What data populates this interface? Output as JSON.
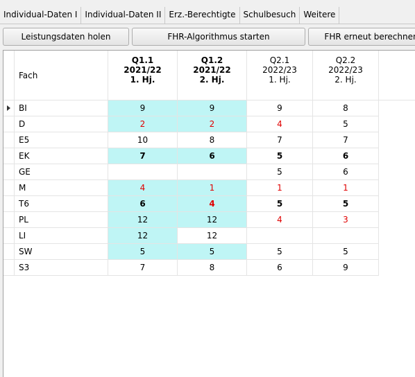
{
  "tabs": [
    "Individual-Daten I",
    "Individual-Daten II",
    "Erz.-Berechtigte",
    "Schulbesuch",
    "Weitere"
  ],
  "buttons": [
    "Leistungsdaten holen",
    "FHR-Algorithmus starten",
    "FHR erneut berechnen"
  ],
  "table": {
    "columns": [
      {
        "lines": [
          "Fach"
        ]
      },
      {
        "lines": [
          "Q1.1",
          "2021/22",
          "1. Hj."
        ],
        "bold": true
      },
      {
        "lines": [
          "Q1.2",
          "2021/22",
          "2. Hj."
        ],
        "bold": true
      },
      {
        "lines": [
          "Q2.1",
          "2022/23",
          "1. Hj."
        ]
      },
      {
        "lines": [
          "Q2.2",
          "2022/23",
          "2. Hj."
        ]
      }
    ],
    "rows": [
      {
        "fach": "BI",
        "current": true,
        "cells": [
          {
            "text": "9",
            "bg": "#bff5f5"
          },
          {
            "text": "9",
            "bg": "#bff5f5"
          },
          {
            "text": "9"
          },
          {
            "text": "8"
          }
        ]
      },
      {
        "fach": "D",
        "cells": [
          {
            "text": "2",
            "bg": "#bff5f5",
            "color": "#e00000"
          },
          {
            "text": "2",
            "bg": "#bff5f5",
            "color": "#e00000"
          },
          {
            "text": "4",
            "color": "#e00000"
          },
          {
            "text": "5"
          }
        ]
      },
      {
        "fach": "E5",
        "cells": [
          {
            "text": "10"
          },
          {
            "text": "8"
          },
          {
            "text": "7"
          },
          {
            "text": "7"
          }
        ]
      },
      {
        "fach": "EK",
        "cells": [
          {
            "text": "7",
            "bg": "#bff5f5",
            "bold": true
          },
          {
            "text": "6",
            "bg": "#bff5f5",
            "bold": true
          },
          {
            "text": "5",
            "bold": true
          },
          {
            "text": "6",
            "bold": true
          }
        ]
      },
      {
        "fach": "GE",
        "cells": [
          null,
          null,
          {
            "text": "5"
          },
          {
            "text": "6"
          }
        ]
      },
      {
        "fach": "M",
        "cells": [
          {
            "text": "4",
            "bg": "#bff5f5",
            "color": "#e00000"
          },
          {
            "text": "1",
            "bg": "#bff5f5",
            "color": "#e00000"
          },
          {
            "text": "1",
            "color": "#e00000"
          },
          {
            "text": "1",
            "color": "#e00000"
          }
        ]
      },
      {
        "fach": "T6",
        "cells": [
          {
            "text": "6",
            "bg": "#bff5f5",
            "bold": true
          },
          {
            "text": "4",
            "bg": "#bff5f5",
            "bold": true,
            "color": "#e00000"
          },
          {
            "text": "5",
            "bold": true
          },
          {
            "text": "5",
            "bold": true
          }
        ]
      },
      {
        "fach": "PL",
        "cells": [
          {
            "text": "12",
            "bg": "#bff5f5"
          },
          {
            "text": "12",
            "bg": "#bff5f5"
          },
          {
            "text": "4",
            "color": "#e00000"
          },
          {
            "text": "3",
            "color": "#e00000"
          }
        ]
      },
      {
        "fach": "LI",
        "cells": [
          {
            "text": "12",
            "bg": "#bff5f5"
          },
          {
            "text": "12"
          },
          null,
          null
        ]
      },
      {
        "fach": "SW",
        "cells": [
          {
            "text": "5",
            "bg": "#bff5f5"
          },
          {
            "text": "5",
            "bg": "#bff5f5"
          },
          {
            "text": "5"
          },
          {
            "text": "5"
          }
        ]
      },
      {
        "fach": "S3",
        "cells": [
          {
            "text": "7"
          },
          {
            "text": "8"
          },
          {
            "text": "6"
          },
          {
            "text": "9"
          }
        ]
      }
    ]
  }
}
